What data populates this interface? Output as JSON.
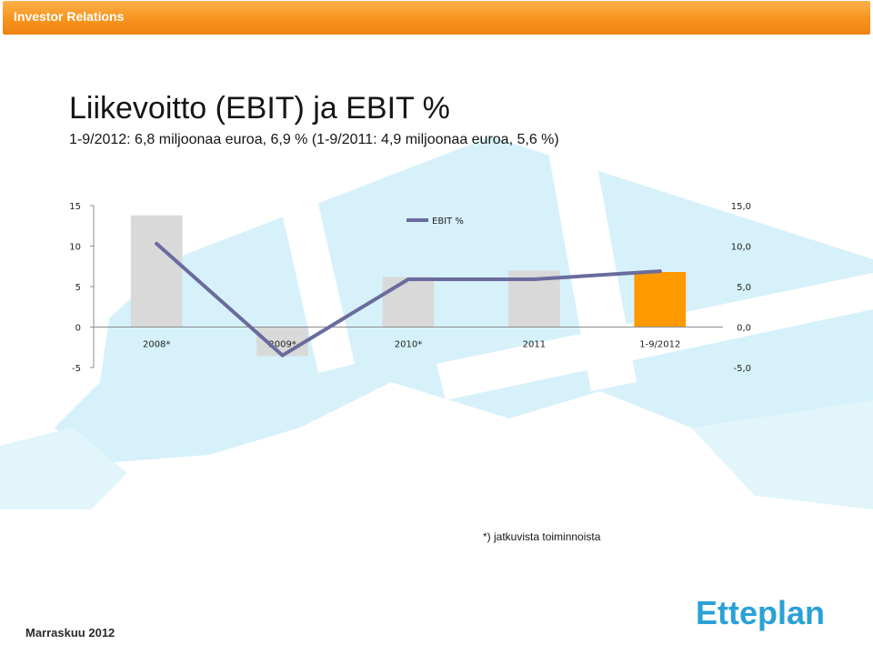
{
  "header": {
    "title": "Investor Relations"
  },
  "slide": {
    "title": "Liikevoitto (EBIT) ja EBIT %",
    "subtitle": "1-9/2012: 6,8 miljoonaa euroa, 6,9 % (1-9/2011: 4,9 miljoonaa euroa, 5,6 %)",
    "footnote": "*) jatkuvista toiminnoista",
    "date": "Marraskuu 2012",
    "logo_text": "Etteplan"
  },
  "colors": {
    "header": "#f7941d",
    "bar_default": "#d9d9d9",
    "bar_highlight": "#ff9900",
    "line": "#6a6b9d",
    "background_pattern": "#d6f1fa"
  },
  "chart_data": {
    "type": "bar",
    "categories": [
      "2008*",
      "2009*",
      "2010*",
      "2011",
      "1-9/2012"
    ],
    "series": [
      {
        "kind": "bar",
        "axis": "left",
        "values": [
          13.8,
          -3.6,
          6.2,
          7.0,
          6.8
        ]
      },
      {
        "kind": "line",
        "axis": "right",
        "name": "EBIT %",
        "values": [
          10.3,
          -3.5,
          5.9,
          5.9,
          6.9
        ]
      }
    ],
    "y_left": {
      "ylim": [
        -5,
        15
      ],
      "ticks": [
        "15",
        "10",
        "5",
        "0",
        "-5"
      ]
    },
    "y_right": {
      "ylim": [
        -5,
        15
      ],
      "ticks": [
        "15,0",
        "10,0",
        "5,0",
        "0,0",
        "-5,0"
      ]
    },
    "highlight_index": 4,
    "legend": {
      "entries": [
        "EBIT %"
      ],
      "position": "top-center"
    }
  }
}
